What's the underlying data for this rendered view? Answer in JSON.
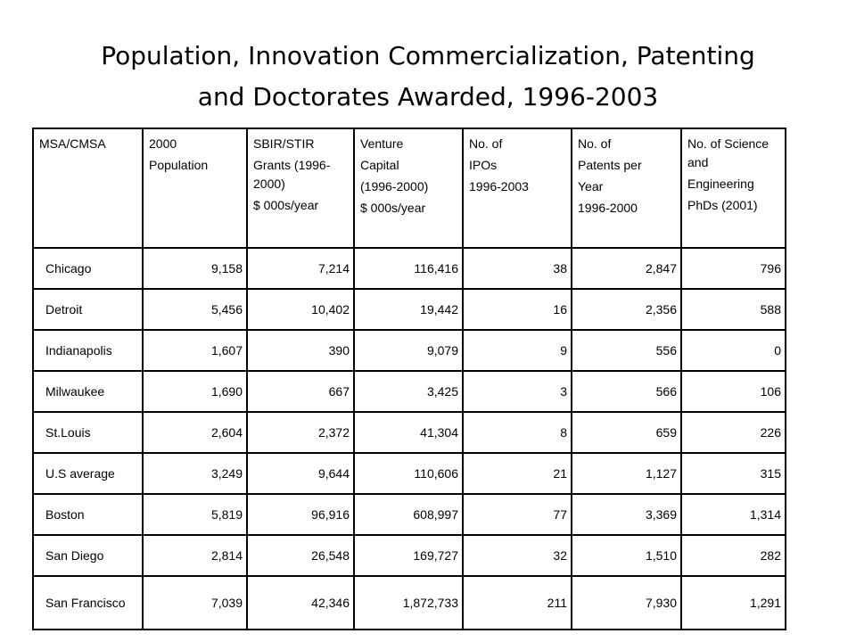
{
  "title_line1": "Population, Innovation Commercialization, Patenting",
  "title_line2": "and Doctorates Awarded, 1996-2003",
  "headers": [
    [
      "MSA/CMSA"
    ],
    [
      "2000",
      "Population"
    ],
    [
      "SBIR/STIR",
      "Grants (1996-2000)",
      "$ 000s/year"
    ],
    [
      "Venture",
      "Capital",
      "(1996-2000)",
      "$ 000s/year"
    ],
    [
      "No. of",
      "IPOs",
      "1996-2003"
    ],
    [
      "No. of",
      "Patents per",
      "Year",
      "1996-2000"
    ],
    [
      "No. of Science and",
      "Engineering",
      "PhDs (2001)"
    ]
  ],
  "rows": [
    [
      "Chicago",
      "9,158",
      "7,214",
      "116,416",
      "38",
      "2,847",
      "796"
    ],
    [
      "Detroit",
      "5,456",
      "10,402",
      "19,442",
      "16",
      "2,356",
      "588"
    ],
    [
      "Indianapolis",
      "1,607",
      "390",
      "9,079",
      "9",
      "556",
      "0"
    ],
    [
      "Milwaukee",
      "1,690",
      "667",
      "3,425",
      "3",
      "566",
      "106"
    ],
    [
      "St.Louis",
      "2,604",
      "2,372",
      "41,304",
      "8",
      "659",
      "226"
    ],
    [
      "U.S average",
      "3,249",
      "9,644",
      "110,606",
      "21",
      "1,127",
      "315"
    ],
    [
      "Boston",
      "5,819",
      "96,916",
      "608,997",
      "77",
      "3,369",
      "1,314"
    ],
    [
      "San Diego",
      "2,814",
      "26,548",
      "169,727",
      "32",
      "1,510",
      "282"
    ],
    [
      "San Francisco",
      "7,039",
      "42,346",
      "1,872,733",
      "211",
      "7,930",
      "1,291"
    ]
  ]
}
